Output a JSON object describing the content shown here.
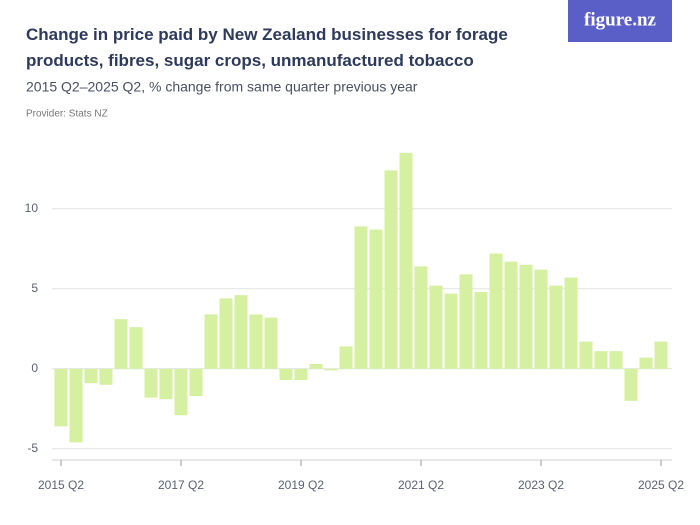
{
  "logo": "figure.nz",
  "chart_data": {
    "type": "bar",
    "title": "Change in price paid by New Zealand businesses for forage products, fibres, sugar crops, unmanufactured tobacco",
    "subtitle": "2015 Q2–2025 Q2, % change from same quarter previous year",
    "provider": "Provider: Stats NZ",
    "categories": [
      "2015 Q2",
      null,
      null,
      null,
      null,
      null,
      null,
      null,
      "2017 Q2",
      null,
      null,
      null,
      null,
      null,
      null,
      null,
      "2019 Q2",
      null,
      null,
      null,
      null,
      null,
      null,
      null,
      "2021 Q2",
      null,
      null,
      null,
      null,
      null,
      null,
      null,
      "2023 Q2",
      null,
      null,
      null,
      null,
      null,
      null,
      null,
      "2025 Q2"
    ],
    "values": [
      -3.6,
      -4.6,
      -0.9,
      -1.0,
      3.1,
      2.6,
      -1.8,
      -1.9,
      -2.9,
      -1.7,
      3.4,
      4.4,
      4.6,
      3.4,
      3.2,
      -0.7,
      -0.7,
      0.3,
      -0.1,
      1.4,
      8.9,
      8.7,
      12.4,
      13.5,
      6.4,
      5.2,
      4.7,
      5.9,
      4.8,
      7.2,
      6.7,
      6.5,
      6.2,
      5.2,
      5.7,
      1.7,
      1.1,
      1.1,
      -2.0,
      0.7,
      1.7
    ],
    "color": "#d4f0a0",
    "ylim": [
      -5.7,
      14.3
    ],
    "yticks": [
      -5,
      0,
      5,
      10
    ],
    "grid": true
  }
}
